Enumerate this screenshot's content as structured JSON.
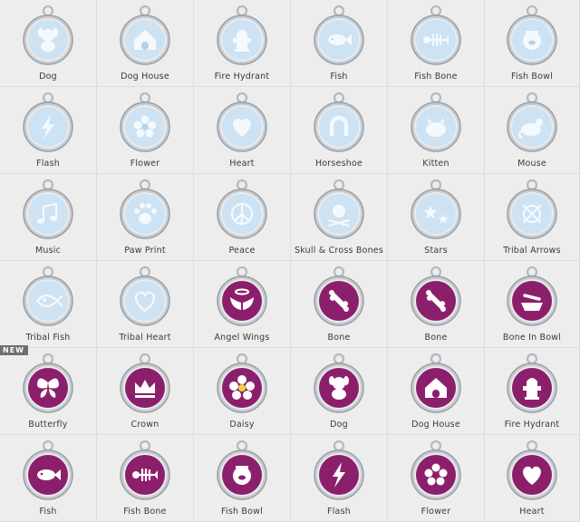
{
  "colors": {
    "light_blue": "#cde2f2",
    "purple": "#8c1f6b",
    "steel": "#a8acb0",
    "accent_light": "#ffffff"
  },
  "new_badge": "NEW",
  "tags": [
    {
      "label": "Dog",
      "color": "light_blue",
      "icon": "dog"
    },
    {
      "label": "Dog House",
      "color": "light_blue",
      "icon": "dog-house"
    },
    {
      "label": "Fire Hydrant",
      "color": "light_blue",
      "icon": "fire-hydrant"
    },
    {
      "label": "Fish",
      "color": "light_blue",
      "icon": "fish"
    },
    {
      "label": "Fish Bone",
      "color": "light_blue",
      "icon": "fish-bone"
    },
    {
      "label": "Fish Bowl",
      "color": "light_blue",
      "icon": "fish-bowl"
    },
    {
      "label": "Flash",
      "color": "light_blue",
      "icon": "flash"
    },
    {
      "label": "Flower",
      "color": "light_blue",
      "icon": "flower"
    },
    {
      "label": "Heart",
      "color": "light_blue",
      "icon": "heart"
    },
    {
      "label": "Horseshoe",
      "color": "light_blue",
      "icon": "horseshoe"
    },
    {
      "label": "Kitten",
      "color": "light_blue",
      "icon": "kitten"
    },
    {
      "label": "Mouse",
      "color": "light_blue",
      "icon": "mouse"
    },
    {
      "label": "Music",
      "color": "light_blue",
      "icon": "music"
    },
    {
      "label": "Paw Print",
      "color": "light_blue",
      "icon": "paw-print"
    },
    {
      "label": "Peace",
      "color": "light_blue",
      "icon": "peace"
    },
    {
      "label": "Skull & Cross Bones",
      "color": "light_blue",
      "icon": "skull-cross-bones"
    },
    {
      "label": "Stars",
      "color": "light_blue",
      "icon": "stars"
    },
    {
      "label": "Tribal Arrows",
      "color": "light_blue",
      "icon": "tribal-arrows"
    },
    {
      "label": "Tribal Fish",
      "color": "light_blue",
      "icon": "tribal-fish"
    },
    {
      "label": "Tribal Heart",
      "color": "light_blue",
      "icon": "tribal-heart"
    },
    {
      "label": "Angel Wings",
      "color": "purple",
      "icon": "angel-wings"
    },
    {
      "label": "Bone",
      "color": "purple",
      "icon": "bone"
    },
    {
      "label": "Bone",
      "color": "purple",
      "icon": "bone"
    },
    {
      "label": "Bone In Bowl",
      "color": "purple",
      "icon": "bone-in-bowl"
    },
    {
      "label": "Butterfly",
      "color": "purple",
      "icon": "butterfly"
    },
    {
      "label": "Crown",
      "color": "purple",
      "icon": "crown"
    },
    {
      "label": "Daisy",
      "color": "purple",
      "icon": "daisy"
    },
    {
      "label": "Dog",
      "color": "purple",
      "icon": "dog"
    },
    {
      "label": "Dog House",
      "color": "purple",
      "icon": "dog-house"
    },
    {
      "label": "Fire Hydrant",
      "color": "purple",
      "icon": "fire-hydrant"
    },
    {
      "label": "Fish",
      "color": "purple",
      "icon": "fish"
    },
    {
      "label": "Fish Bone",
      "color": "purple",
      "icon": "fish-bone"
    },
    {
      "label": "Fish Bowl",
      "color": "purple",
      "icon": "fish-bowl"
    },
    {
      "label": "Flash",
      "color": "purple",
      "icon": "flash"
    },
    {
      "label": "Flower",
      "color": "purple",
      "icon": "flower"
    },
    {
      "label": "Heart",
      "color": "purple",
      "icon": "heart"
    }
  ]
}
